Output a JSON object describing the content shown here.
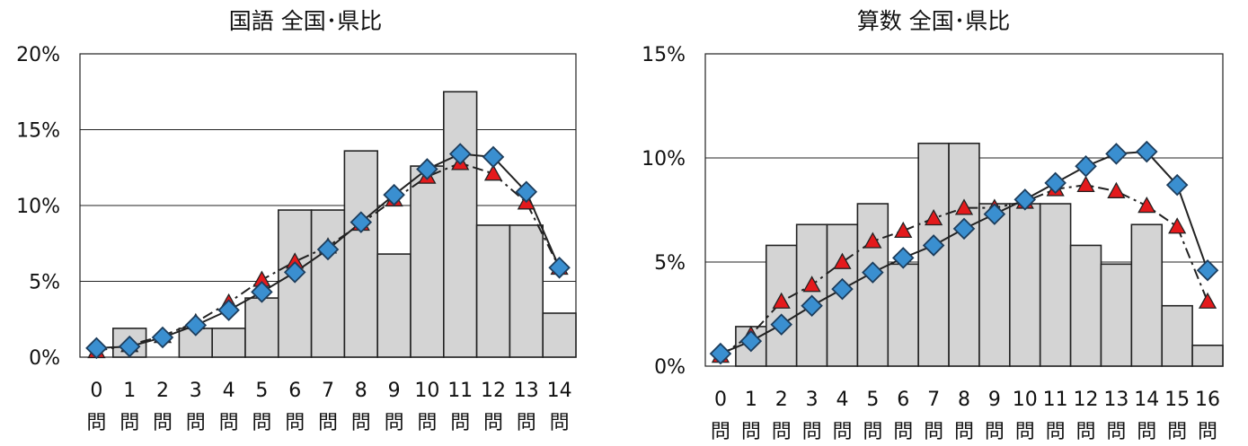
{
  "chart_data": [
    {
      "type": "bar",
      "title": "国語 全国･県比",
      "categories": [
        "0",
        "1",
        "2",
        "3",
        "4",
        "5",
        "6",
        "7",
        "8",
        "9",
        "10",
        "11",
        "12",
        "13",
        "14"
      ],
      "category_unit": "問",
      "y_tick_labels": [
        "0%",
        "5%",
        "10%",
        "15%",
        "20%"
      ],
      "ylim": [
        0,
        20
      ],
      "grid": true,
      "series": [
        {
          "values": [
            0,
            1.9,
            0,
            1.9,
            1.9,
            3.9,
            9.7,
            9.7,
            13.6,
            6.8,
            12.6,
            17.5,
            8.7,
            8.7,
            2.9
          ],
          "kind": "bar",
          "color": "#d4d4d4"
        },
        {
          "values": [
            0.4,
            0.8,
            1.4,
            2.3,
            3.6,
            5.1,
            6.3,
            7.3,
            8.8,
            10.4,
            11.9,
            12.8,
            12.1,
            10.2,
            5.9
          ],
          "kind": "line-triangle",
          "color": "#e41a1c"
        },
        {
          "values": [
            0.6,
            0.7,
            1.3,
            2.1,
            3.1,
            4.3,
            5.6,
            7.1,
            8.9,
            10.7,
            12.4,
            13.4,
            13.2,
            10.9,
            5.9
          ],
          "kind": "line-diamond",
          "color": "#3a8fd0"
        }
      ]
    },
    {
      "type": "bar",
      "title": "算数 全国･県比",
      "categories": [
        "0",
        "1",
        "2",
        "3",
        "4",
        "5",
        "6",
        "7",
        "8",
        "9",
        "10",
        "11",
        "12",
        "13",
        "14",
        "15",
        "16"
      ],
      "category_unit": "問",
      "y_tick_labels": [
        "0%",
        "5%",
        "10%",
        "15%"
      ],
      "ylim": [
        0,
        15
      ],
      "grid": true,
      "series": [
        {
          "values": [
            0,
            1.9,
            5.8,
            6.8,
            6.8,
            7.8,
            4.9,
            10.7,
            10.7,
            7.8,
            7.8,
            7.8,
            5.8,
            4.9,
            6.8,
            2.9,
            1.0
          ],
          "kind": "bar",
          "color": "#d4d4d4"
        },
        {
          "values": [
            0.5,
            1.5,
            3.1,
            3.9,
            5.0,
            6.0,
            6.5,
            7.1,
            7.6,
            7.6,
            7.9,
            8.5,
            8.7,
            8.4,
            7.7,
            6.7,
            3.1
          ],
          "kind": "line-triangle",
          "color": "#e41a1c"
        },
        {
          "values": [
            0.6,
            1.2,
            2.0,
            2.9,
            3.7,
            4.5,
            5.2,
            5.8,
            6.6,
            7.3,
            8.0,
            8.8,
            9.6,
            10.2,
            10.3,
            8.7,
            4.6
          ],
          "kind": "line-diamond",
          "color": "#3a8fd0"
        }
      ]
    }
  ]
}
